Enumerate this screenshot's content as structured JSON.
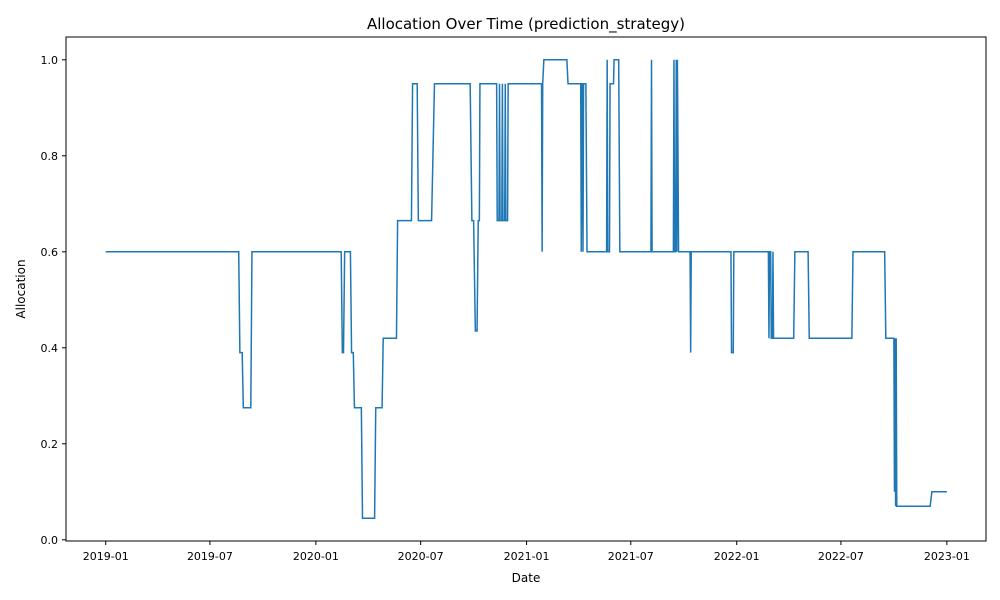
{
  "chart_data": {
    "type": "line",
    "title": "Allocation Over Time (prediction_strategy)",
    "xlabel": "Date",
    "ylabel": "Allocation",
    "grid": false,
    "legend": "none",
    "color": "#1f77b4",
    "xlim": [
      "2018-10-24",
      "2023-03-10"
    ],
    "ylim": [
      -0.0025,
      1.0475
    ],
    "xticks": [
      "2019-01",
      "2019-07",
      "2020-01",
      "2020-07",
      "2021-01",
      "2021-07",
      "2022-01",
      "2022-07",
      "2023-01"
    ],
    "yticks": [
      "0.0",
      "0.2",
      "0.4",
      "0.6",
      "0.8",
      "1.0"
    ],
    "series": [
      {
        "points": [
          [
            "2019-01-01",
            0.6
          ],
          [
            "2019-08-20",
            0.6
          ],
          [
            "2019-08-22",
            0.39
          ],
          [
            "2019-08-26",
            0.39
          ],
          [
            "2019-08-28",
            0.275
          ],
          [
            "2019-09-10",
            0.275
          ],
          [
            "2019-09-12",
            0.6
          ],
          [
            "2020-02-14",
            0.6
          ],
          [
            "2020-02-16",
            0.39
          ],
          [
            "2020-02-18",
            0.39
          ],
          [
            "2020-02-20",
            0.6
          ],
          [
            "2020-03-01",
            0.6
          ],
          [
            "2020-03-03",
            0.39
          ],
          [
            "2020-03-06",
            0.39
          ],
          [
            "2020-03-08",
            0.275
          ],
          [
            "2020-03-20",
            0.275
          ],
          [
            "2020-03-22",
            0.045
          ],
          [
            "2020-04-12",
            0.045
          ],
          [
            "2020-04-14",
            0.275
          ],
          [
            "2020-04-25",
            0.275
          ],
          [
            "2020-04-27",
            0.42
          ],
          [
            "2020-05-20",
            0.42
          ],
          [
            "2020-05-22",
            0.665
          ],
          [
            "2020-06-15",
            0.665
          ],
          [
            "2020-06-17",
            0.95
          ],
          [
            "2020-06-25",
            0.95
          ],
          [
            "2020-06-27",
            0.665
          ],
          [
            "2020-07-20",
            0.665
          ],
          [
            "2020-07-25",
            0.95
          ],
          [
            "2020-09-25",
            0.95
          ],
          [
            "2020-09-28",
            0.665
          ],
          [
            "2020-10-01",
            0.665
          ],
          [
            "2020-10-04",
            0.435
          ],
          [
            "2020-10-07",
            0.435
          ],
          [
            "2020-10-09",
            0.665
          ],
          [
            "2020-10-11",
            0.665
          ],
          [
            "2020-10-12",
            0.95
          ],
          [
            "2020-11-10",
            0.95
          ],
          [
            "2020-11-11",
            0.665
          ],
          [
            "2020-11-14",
            0.665
          ],
          [
            "2020-11-15",
            0.95
          ],
          [
            "2020-11-16",
            0.665
          ],
          [
            "2020-11-19",
            0.665
          ],
          [
            "2020-11-20",
            0.95
          ],
          [
            "2020-11-21",
            0.665
          ],
          [
            "2020-11-24",
            0.665
          ],
          [
            "2020-11-25",
            0.95
          ],
          [
            "2020-11-26",
            0.665
          ],
          [
            "2020-11-29",
            0.665
          ],
          [
            "2020-11-30",
            0.95
          ],
          [
            "2021-01-27",
            0.95
          ],
          [
            "2021-01-28",
            0.6
          ],
          [
            "2021-01-29",
            0.95
          ],
          [
            "2021-01-31",
            1.0
          ],
          [
            "2021-03-12",
            1.0
          ],
          [
            "2021-03-14",
            0.95
          ],
          [
            "2021-04-05",
            0.95
          ],
          [
            "2021-04-06",
            0.6
          ],
          [
            "2021-04-07",
            0.95
          ],
          [
            "2021-04-08",
            0.95
          ],
          [
            "2021-04-09",
            0.6
          ],
          [
            "2021-04-10",
            0.95
          ],
          [
            "2021-04-14",
            0.95
          ],
          [
            "2021-04-16",
            0.6
          ],
          [
            "2021-05-20",
            0.6
          ],
          [
            "2021-05-21",
            1.0
          ],
          [
            "2021-05-22",
            0.6
          ],
          [
            "2021-05-25",
            0.6
          ],
          [
            "2021-05-26",
            0.95
          ],
          [
            "2021-06-01",
            0.95
          ],
          [
            "2021-06-02",
            1.0
          ],
          [
            "2021-06-10",
            1.0
          ],
          [
            "2021-06-12",
            0.6
          ],
          [
            "2021-08-05",
            0.6
          ],
          [
            "2021-08-06",
            1.0
          ],
          [
            "2021-08-07",
            0.6
          ],
          [
            "2021-09-13",
            0.6
          ],
          [
            "2021-09-14",
            1.0
          ],
          [
            "2021-09-15",
            0.6
          ],
          [
            "2021-09-17",
            0.6
          ],
          [
            "2021-09-18",
            1.0
          ],
          [
            "2021-09-19",
            0.6
          ],
          [
            "2021-09-20",
            1.0
          ],
          [
            "2021-09-22",
            0.6
          ],
          [
            "2021-10-12",
            0.6
          ],
          [
            "2021-10-13",
            0.39
          ],
          [
            "2021-10-14",
            0.6
          ],
          [
            "2021-12-22",
            0.6
          ],
          [
            "2021-12-23",
            0.39
          ],
          [
            "2021-12-26",
            0.39
          ],
          [
            "2021-12-27",
            0.6
          ],
          [
            "2022-02-25",
            0.6
          ],
          [
            "2022-02-26",
            0.42
          ],
          [
            "2022-02-27",
            0.6
          ],
          [
            "2022-03-01",
            0.6
          ],
          [
            "2022-03-02",
            0.42
          ],
          [
            "2022-03-04",
            0.42
          ],
          [
            "2022-03-05",
            0.6
          ],
          [
            "2022-03-06",
            0.42
          ],
          [
            "2022-04-10",
            0.42
          ],
          [
            "2022-04-12",
            0.6
          ],
          [
            "2022-05-05",
            0.6
          ],
          [
            "2022-05-07",
            0.42
          ],
          [
            "2022-07-20",
            0.42
          ],
          [
            "2022-07-22",
            0.6
          ],
          [
            "2022-09-15",
            0.6
          ],
          [
            "2022-09-17",
            0.42
          ],
          [
            "2022-10-01",
            0.42
          ],
          [
            "2022-10-02",
            0.1
          ],
          [
            "2022-10-03",
            0.42
          ],
          [
            "2022-10-04",
            0.07
          ],
          [
            "2022-10-05",
            0.42
          ],
          [
            "2022-10-06",
            0.07
          ],
          [
            "2022-12-03",
            0.07
          ],
          [
            "2022-12-06",
            0.1
          ],
          [
            "2023-01-01",
            0.1
          ]
        ]
      }
    ]
  }
}
